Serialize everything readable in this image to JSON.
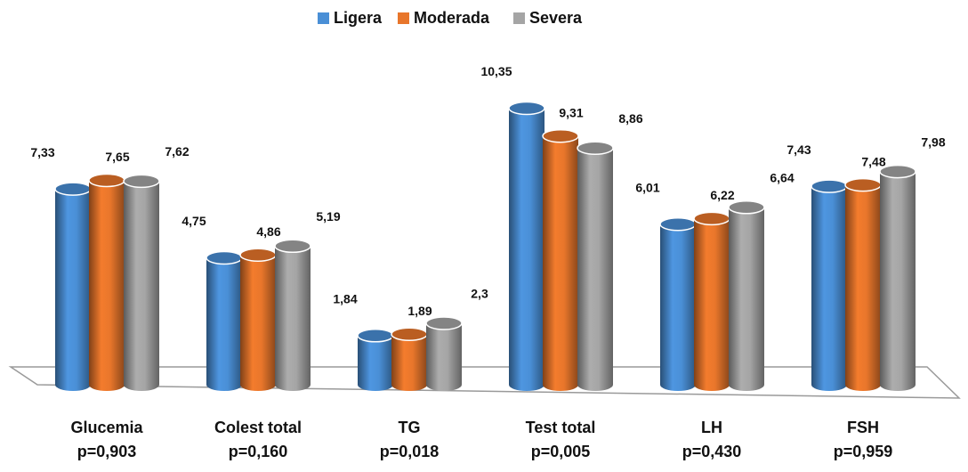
{
  "chart_data": {
    "type": "bar",
    "categories": [
      [
        "Glucemia",
        "p=0,903"
      ],
      [
        "Colest total",
        "p=0,160"
      ],
      [
        "TG",
        "p=0,018"
      ],
      [
        "Test total",
        "p=0,005"
      ],
      [
        "LH",
        "p=0,430"
      ],
      [
        "FSH",
        "p=0,959"
      ]
    ],
    "series": [
      {
        "name": "Ligera",
        "color": "#4a8fd6",
        "values": [
          7.33,
          4.75,
          1.84,
          10.35,
          6.01,
          7.43
        ],
        "value_labels": [
          "7,33",
          "4,75",
          "1,84",
          "10,35",
          "6,01",
          "7,43"
        ]
      },
      {
        "name": "Moderada",
        "color": "#e8762b",
        "values": [
          7.65,
          4.86,
          1.89,
          9.31,
          6.22,
          7.48
        ],
        "value_labels": [
          "7,65",
          "4,86",
          "1,89",
          "9,31",
          "6,22",
          "7,48"
        ]
      },
      {
        "name": "Severa",
        "color": "#a5a5a5",
        "values": [
          7.62,
          5.19,
          2.3,
          8.86,
          6.64,
          7.98
        ],
        "value_labels": [
          "7,62",
          "5,19",
          "2,3",
          "8,86",
          "6,64",
          "7,98"
        ]
      }
    ],
    "legend": "top"
  }
}
